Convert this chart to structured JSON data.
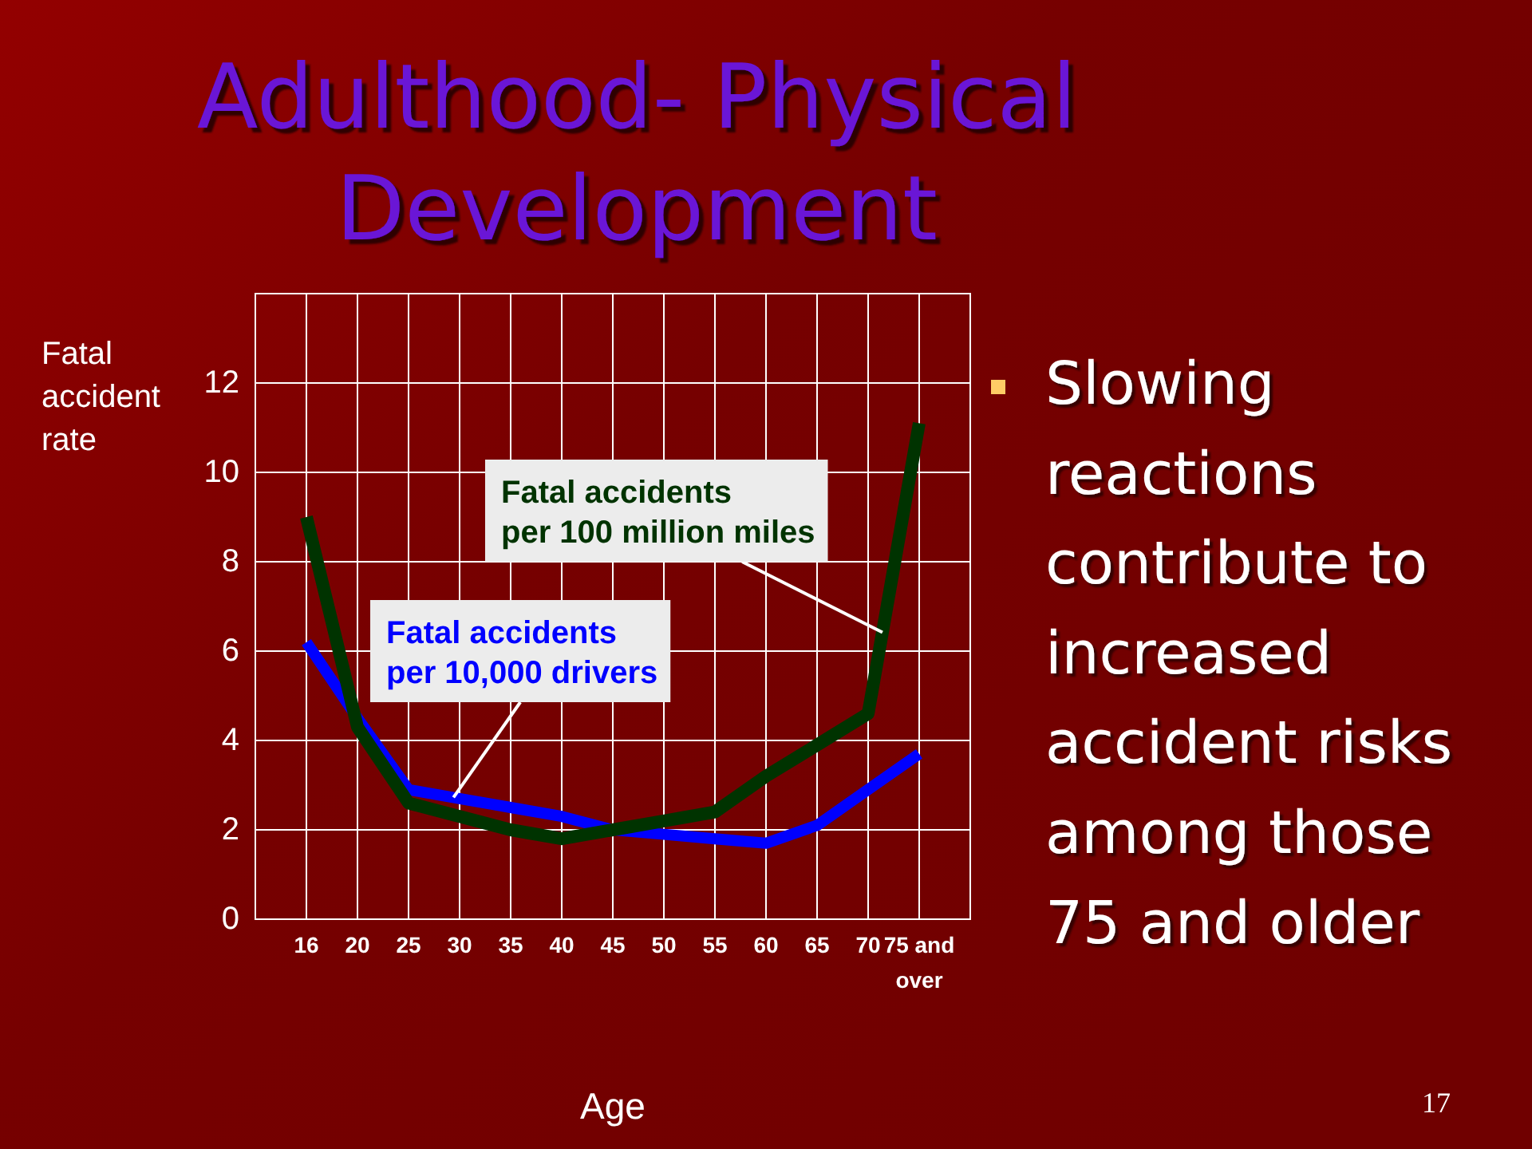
{
  "chart_data": {
    "type": "line",
    "title": "Adulthood- Physical Development",
    "xlabel": "Age",
    "ylabel": "Fatal accident rate",
    "categories": [
      "16",
      "20",
      "25",
      "30",
      "35",
      "40",
      "45",
      "50",
      "55",
      "60",
      "65",
      "70",
      "75 and over"
    ],
    "series": [
      {
        "name": "Fatal accidents per 10,000 drivers",
        "color": "#0000ff",
        "values": [
          6.2,
          4.5,
          2.9,
          2.7,
          2.5,
          2.3,
          2.0,
          1.9,
          1.8,
          1.7,
          2.1,
          2.9,
          3.7
        ]
      },
      {
        "name": "Fatal accidents per 100 million miles",
        "color": "#003300",
        "values": [
          9.0,
          4.3,
          2.6,
          2.3,
          2.0,
          1.8,
          2.0,
          2.2,
          2.4,
          3.2,
          3.9,
          4.6,
          11.1
        ]
      }
    ],
    "ylim": [
      0,
      14
    ],
    "yticks": [
      0,
      2,
      4,
      6,
      8,
      10,
      12
    ],
    "grid": true,
    "annotations": [
      "Slowing reactions contribute to increased accident risks among those 75 and older",
      "17"
    ]
  }
}
